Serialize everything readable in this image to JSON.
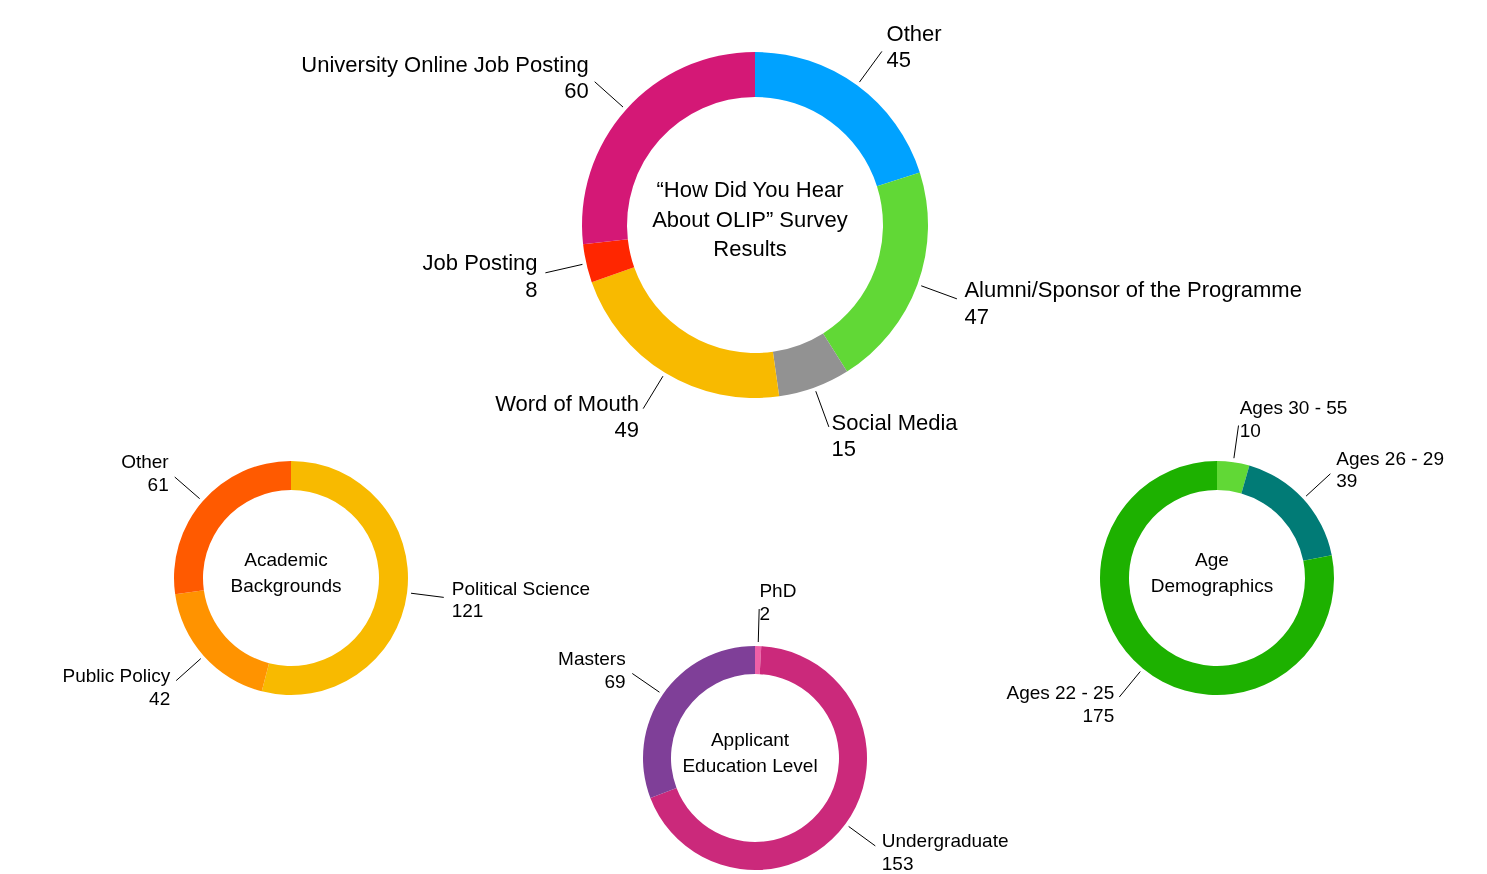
{
  "chart_data": [
    {
      "type": "donut",
      "title": "“How Did You Hear About OLIP” Survey Results",
      "categories": [
        "Other",
        "Alumni/Sponsor of the Programme",
        "Social Media",
        "Word of Mouth",
        "Job Posting",
        "University Online Job Posting"
      ],
      "values": [
        45,
        47,
        15,
        49,
        8,
        60
      ],
      "colors": [
        "#00a2ff",
        "#61d836",
        "#929292",
        "#f8ba00",
        "#ff2600",
        "#d41876"
      ],
      "data_labels": true
    },
    {
      "type": "donut",
      "title": "Academic Backgrounds",
      "categories": [
        "Political Science",
        "Public Policy",
        "Other"
      ],
      "values": [
        121,
        42,
        61
      ],
      "colors": [
        "#f8ba00",
        "#ff9300",
        "#ff5a00"
      ],
      "data_labels": true
    },
    {
      "type": "donut",
      "title": "Applicant Education Level",
      "categories": [
        "PhD",
        "Undergraduate",
        "Masters"
      ],
      "values": [
        2,
        153,
        69
      ],
      "colors": [
        "#ef5fa7",
        "#cb297b",
        "#7f3f98"
      ],
      "data_labels": true
    },
    {
      "type": "donut",
      "title": "Age Demographics",
      "categories": [
        "Ages 30 - 55",
        "Ages 26 - 29",
        "Ages 22 - 25"
      ],
      "values": [
        10,
        39,
        175
      ],
      "colors": [
        "#61d836",
        "#017b76",
        "#1db100"
      ],
      "data_labels": true
    }
  ]
}
